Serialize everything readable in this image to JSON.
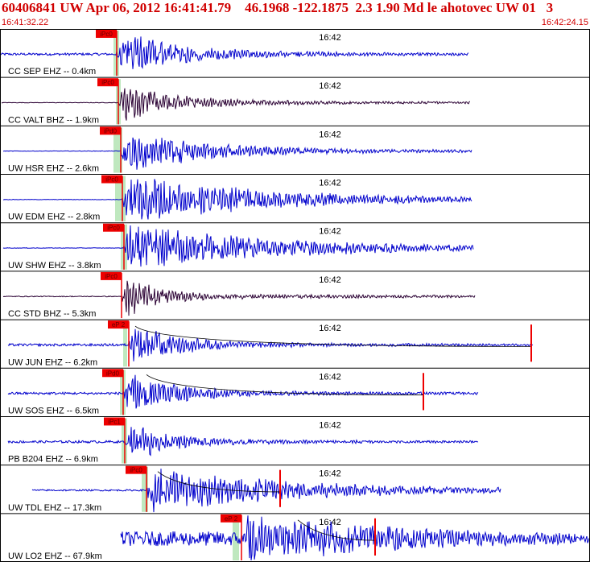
{
  "header": {
    "title": "60406841 UW Apr 06, 2012 16:41:41.79    46.1968 -122.1875  2.3 1.90 Md le ahotovec UW 01   3",
    "start_time": "16:41:32.22",
    "end_time": "16:42:24.15"
  },
  "colors": {
    "header_text": "#d00000",
    "trace_blue": "#0000cc",
    "trace_dark": "#2a0033",
    "pick_red": "#ee0000",
    "window_green": "#bfe8bf",
    "frame": "#000000"
  },
  "chart_data": {
    "type": "line",
    "title": "",
    "xlabel": "",
    "ylabel": "",
    "x_time_range": [
      "16:41:32.22",
      "16:42:24.15"
    ],
    "time_tick_label": "16:42",
    "grid": false,
    "traces": [
      {
        "label": "CC SEP EHZ -- 0.4km",
        "station": "SEP",
        "distance_km": 0.4,
        "pick": "iPc0",
        "color": "blue"
      },
      {
        "label": "CC VALT BHZ -- 1.9km",
        "station": "VALT",
        "distance_km": 1.9,
        "pick": "iPc0",
        "color": "dark"
      },
      {
        "label": "UW HSR EHZ -- 2.6km",
        "station": "HSR",
        "distance_km": 2.6,
        "pick": "iPd0",
        "color": "blue"
      },
      {
        "label": "UW EDM EHZ -- 2.8km",
        "station": "EDM",
        "distance_km": 2.8,
        "pick": "iPc0",
        "color": "blue"
      },
      {
        "label": "UW SHW EHZ -- 3.8km",
        "station": "SHW",
        "distance_km": 3.8,
        "pick": "iPc0",
        "color": "blue"
      },
      {
        "label": "CC STD BHZ -- 5.3km",
        "station": "STD",
        "distance_km": 5.3,
        "pick": "iPc0",
        "color": "dark"
      },
      {
        "label": "UW JUN EHZ -- 6.2km",
        "station": "JUN",
        "distance_km": 6.2,
        "pick": "eP 2",
        "color": "blue"
      },
      {
        "label": "UW SOS EHZ -- 6.5km",
        "station": "SOS",
        "distance_km": 6.5,
        "pick": "iPd0",
        "color": "blue"
      },
      {
        "label": "PB B204 EHZ -- 6.9km",
        "station": "B204",
        "distance_km": 6.9,
        "pick": "iPc1",
        "color": "blue"
      },
      {
        "label": "UW TDL EHZ -- 17.3km",
        "station": "TDL",
        "distance_km": 17.3,
        "pick": "iPc0",
        "color": "blue"
      },
      {
        "label": "UW LO2 EHZ -- 67.9km",
        "station": "LO2",
        "distance_km": 67.9,
        "pick": "eP 2",
        "color": "blue"
      }
    ]
  }
}
